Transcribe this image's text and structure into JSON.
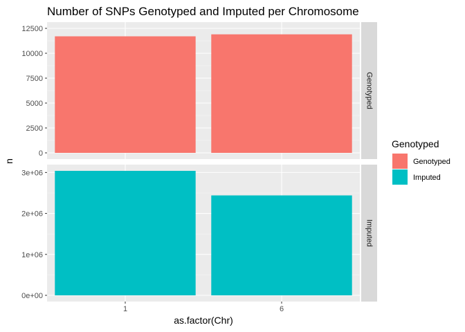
{
  "chart_data": {
    "type": "bar",
    "title": "Number of SNPs Genotyped and Imputed per Chromosome",
    "xlabel": "as.factor(Chr)",
    "ylabel": "n",
    "categories": [
      "1",
      "6"
    ],
    "facet_layout": "rows, free y scales",
    "grid": true,
    "legend_position": "right",
    "legend": {
      "title": "Genotyped",
      "entries": [
        {
          "label": "Genotyped",
          "color": "#F8766D"
        },
        {
          "label": "Imputed",
          "color": "#00BFC4"
        }
      ]
    },
    "panels": [
      {
        "strip": "Genotyped",
        "color": "#F8766D",
        "values": [
          11700,
          11900
        ],
        "ylim": [
          -625,
          13125
        ],
        "ticks": [
          0,
          2500,
          5000,
          7500,
          10000,
          12500
        ],
        "tick_labels": [
          "0",
          "2500",
          "5000",
          "7500",
          "10000",
          "12500"
        ]
      },
      {
        "strip": "Imputed",
        "color": "#00BFC4",
        "values": [
          3040000,
          2440000
        ],
        "ylim": [
          -152000,
          3192000
        ],
        "ticks": [
          0,
          1000000,
          2000000,
          3000000
        ],
        "tick_labels": [
          "0e+00",
          "1e+06",
          "2e+06",
          "3e+06"
        ]
      }
    ]
  }
}
